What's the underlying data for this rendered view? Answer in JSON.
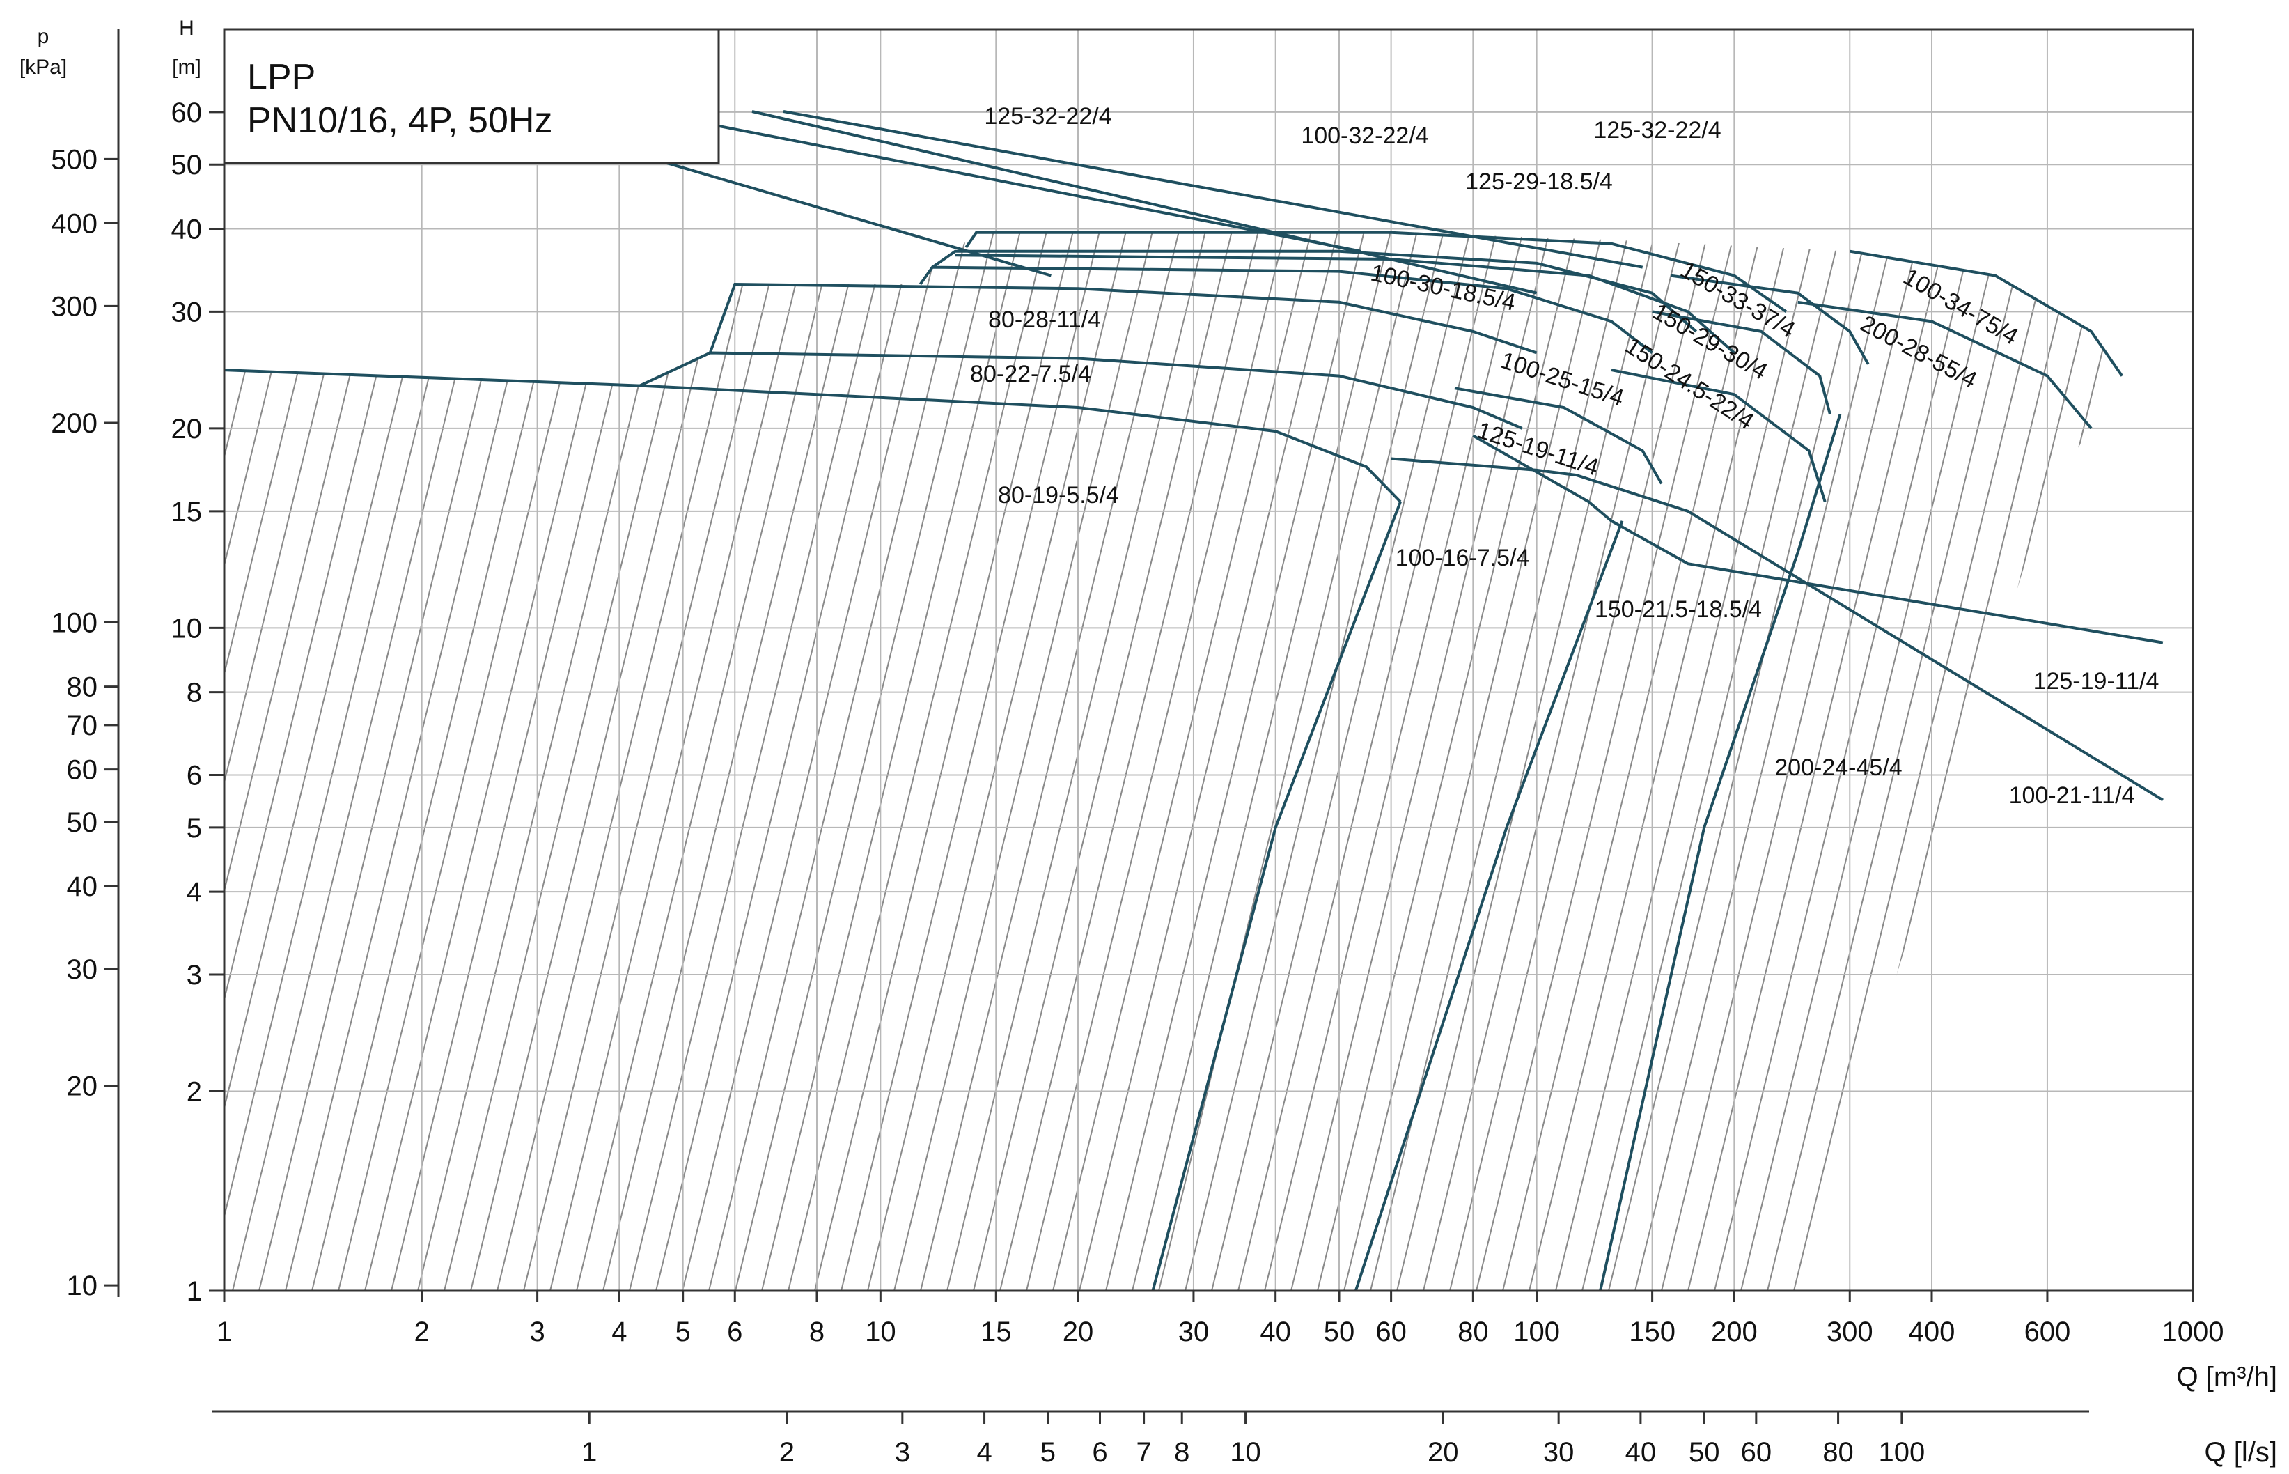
{
  "chart_data": {
    "type": "line",
    "title": "LPP",
    "subtitle": "PN10/16, 4P, 50Hz",
    "xscale": "log",
    "yscale": "log",
    "xlim": [
      1,
      1000
    ],
    "ylim": [
      1,
      80
    ],
    "grid": true,
    "x_axis": {
      "label": "Q [m³/h]",
      "ticks": [
        1,
        2,
        3,
        4,
        5,
        6,
        8,
        10,
        15,
        20,
        30,
        40,
        50,
        60,
        80,
        100,
        150,
        200,
        300,
        400,
        600,
        1000
      ],
      "tick_labels": [
        "1",
        "2",
        "3",
        "4",
        "5",
        "6",
        "8",
        "10",
        "15",
        "20",
        "30",
        "40",
        "50",
        "60",
        "80",
        "100",
        "150",
        "200",
        "300",
        "400",
        "600",
        "1000"
      ]
    },
    "x2_axis": {
      "label": "Q [l/s]",
      "ticks": [
        1,
        2,
        3,
        4,
        5,
        6,
        7,
        8,
        10,
        20,
        30,
        40,
        50,
        60,
        80,
        100
      ],
      "tick_labels": [
        "1",
        "2",
        "3",
        "4",
        "5",
        "6",
        "7",
        "8",
        "10",
        "20",
        "30",
        "40",
        "50",
        "60",
        "80",
        "100"
      ]
    },
    "y_axis": {
      "unit": "[m]",
      "name": "H",
      "ticks": [
        1,
        2,
        3,
        4,
        5,
        6,
        8,
        10,
        15,
        20,
        30,
        40,
        50,
        60
      ],
      "tick_labels": [
        "1",
        "2",
        "3",
        "4",
        "5",
        "6",
        "8",
        "10",
        "15",
        "20",
        "30",
        "40",
        "50",
        "60"
      ]
    },
    "y2_axis": {
      "unit": "[kPa]",
      "name": "p",
      "ticks": [
        10,
        20,
        30,
        40,
        50,
        60,
        70,
        80,
        100,
        200,
        300,
        400,
        500
      ],
      "tick_labels": [
        "10",
        "20",
        "30",
        "40",
        "50",
        "60",
        "70",
        "80",
        "100",
        "200",
        "300",
        "400",
        "500"
      ]
    },
    "series": [
      {
        "name": "80-19-5.5/4",
        "x": [
          1,
          4.3,
          20,
          40,
          55,
          62
        ],
        "y": [
          24.5,
          23.2,
          21.5,
          19.8,
          17.5,
          15.5
        ]
      },
      {
        "name": "80-22-7.5/4",
        "x": [
          4.3,
          5.5,
          20,
          50,
          80,
          95
        ],
        "y": [
          23.2,
          26,
          25.5,
          24,
          21.5,
          20
        ]
      },
      {
        "name": "80-28-11/4",
        "x": [
          5.5,
          6,
          20,
          50,
          80,
          100
        ],
        "y": [
          26,
          33,
          32.5,
          31,
          28,
          26
        ]
      },
      {
        "name": "100-16-7.5/4",
        "x": [
          26,
          40,
          62
        ],
        "y": [
          1,
          5,
          15.5
        ]
      },
      {
        "name": "100-21-11/4",
        "x": [
          60,
          100,
          115,
          170,
          900
        ],
        "y": [
          18,
          17.3,
          17,
          15,
          5.5
        ]
      },
      {
        "name": "100-25-15/4",
        "x": [
          75,
          110,
          145,
          155
        ],
        "y": [
          23,
          21.5,
          18.5,
          16.5
        ]
      },
      {
        "name": "100-30-18.5/4",
        "x": [
          11.5,
          12,
          50,
          90,
          130,
          150
        ],
        "y": [
          33,
          35,
          34.5,
          32.5,
          29,
          26
        ]
      },
      {
        "name": "100-32-22/4",
        "x": [
          12,
          13,
          50,
          100,
          150,
          175
        ],
        "y": [
          35,
          37,
          37,
          35.5,
          32,
          28
        ]
      },
      {
        "name": "125-19-11/4",
        "x": [
          80,
          120,
          130,
          170,
          900
        ],
        "y": [
          19.5,
          15.5,
          14.5,
          12.5,
          9.5
        ]
      },
      {
        "name": "125-29-18.5/4",
        "x": [
          13,
          60,
          120,
          170,
          200
        ],
        "y": [
          36.5,
          36,
          34,
          30,
          26
        ]
      },
      {
        "name": "125-32-22/4",
        "x": [
          13.5,
          14,
          60,
          130,
          200,
          240
        ],
        "y": [
          37.5,
          39.5,
          39.5,
          38,
          34,
          30
        ]
      },
      {
        "name": "150-21.5-18.5/4",
        "x": [
          53,
          90,
          135
        ],
        "y": [
          1,
          5,
          14.5
        ]
      },
      {
        "name": "150-24.5-22/4",
        "x": [
          130,
          200,
          260,
          275
        ],
        "y": [
          24.5,
          22.5,
          18.5,
          15.5
        ]
      },
      {
        "name": "150-29-30/4",
        "x": [
          150,
          220,
          270,
          280
        ],
        "y": [
          30,
          28,
          24,
          21
        ]
      },
      {
        "name": "150-33-37/4",
        "x": [
          160,
          250,
          300,
          320
        ],
        "y": [
          34,
          32,
          28,
          25
        ]
      },
      {
        "name": "200-24-45/4",
        "x": [
          125,
          180,
          250,
          290
        ],
        "y": [
          1,
          5,
          13,
          21
        ]
      },
      {
        "name": "200-28-55/4",
        "x": [
          250,
          400,
          600,
          700
        ],
        "y": [
          31,
          29,
          24,
          20
        ]
      },
      {
        "name": "100-34-75/4",
        "x": [
          300,
          500,
          700,
          780
        ],
        "y": [
          37,
          34,
          28,
          24
        ]
      }
    ],
    "labels": [
      "80-19-5.5/4",
      "80-22-7.5/4",
      "80-28-11/4",
      "100-16-7.5/4",
      "100-21-11/4",
      "100-25-15/4",
      "100-30-18.5/4",
      "100-32-22/4",
      "125-19-11/4",
      "125-19-11/4",
      "125-29-18.5/4",
      "125-32-22/4",
      "125-32-22/4",
      "150-21.5-18.5/4",
      "150-24.5-22/4",
      "150-29-30/4",
      "150-33-37/4",
      "200-24-45/4",
      "200-28-55/4",
      "100-34-75/4"
    ]
  }
}
